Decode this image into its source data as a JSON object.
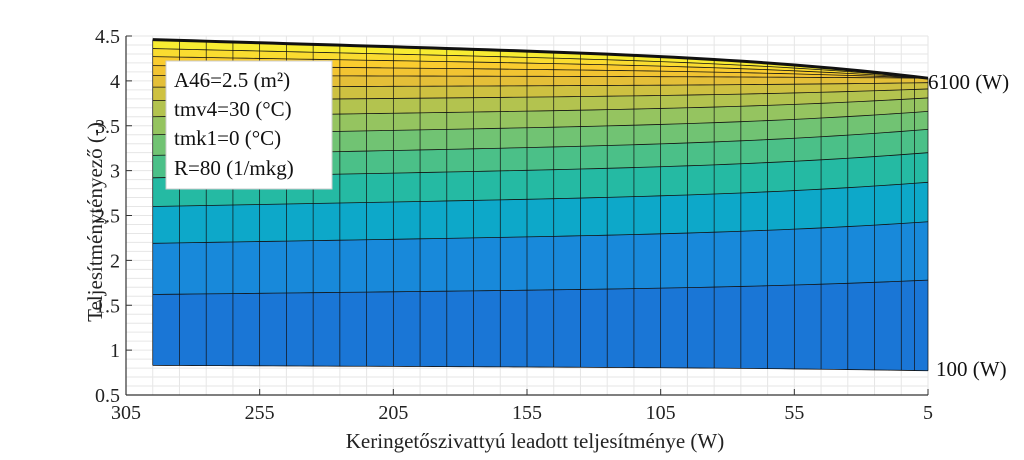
{
  "chart_data": {
    "type": "area",
    "title": "",
    "xlabel": "Keringetőszivattyú leadott teljesítménye (W)",
    "ylabel": "Teljesítménytényező (-)",
    "xlim": [
      305,
      5
    ],
    "ylim": [
      0.5,
      4.5
    ],
    "x_reversed": true,
    "xticks": [
      "305",
      "255",
      "205",
      "155",
      "105",
      "55",
      "5"
    ],
    "yticks": [
      "0.5",
      "1",
      "1.5",
      "2",
      "2.5",
      "3",
      "3.5",
      "4",
      "4.5"
    ],
    "grid": true,
    "x": [
      295,
      5
    ],
    "series": [
      {
        "name": "100 (W)",
        "values": [
          0.83,
          0.77
        ]
      },
      {
        "name": "6100 (W)",
        "values": [
          4.46,
          4.03
        ]
      }
    ],
    "band_boundaries_left": [
      0.83,
      1.62,
      2.19,
      2.6,
      2.92,
      3.17,
      3.4,
      3.6,
      3.78,
      3.93,
      4.06,
      4.17,
      4.27,
      4.36,
      4.46
    ],
    "band_boundaries_right": [
      0.77,
      1.78,
      2.43,
      2.87,
      3.2,
      3.46,
      3.66,
      3.81,
      3.91,
      3.98,
      4.03
    ],
    "colormap": "parula",
    "annotations": {
      "top_curve_label": "6100 (W)",
      "bottom_curve_label": "100 (W)"
    },
    "legend_box": {
      "lines": [
        "A46=2.5 (m²)",
        "tmv4=30 (°C)",
        "tmk1=0 (°C)",
        "R=80 (1/mkg)"
      ],
      "position": "top-left"
    }
  }
}
